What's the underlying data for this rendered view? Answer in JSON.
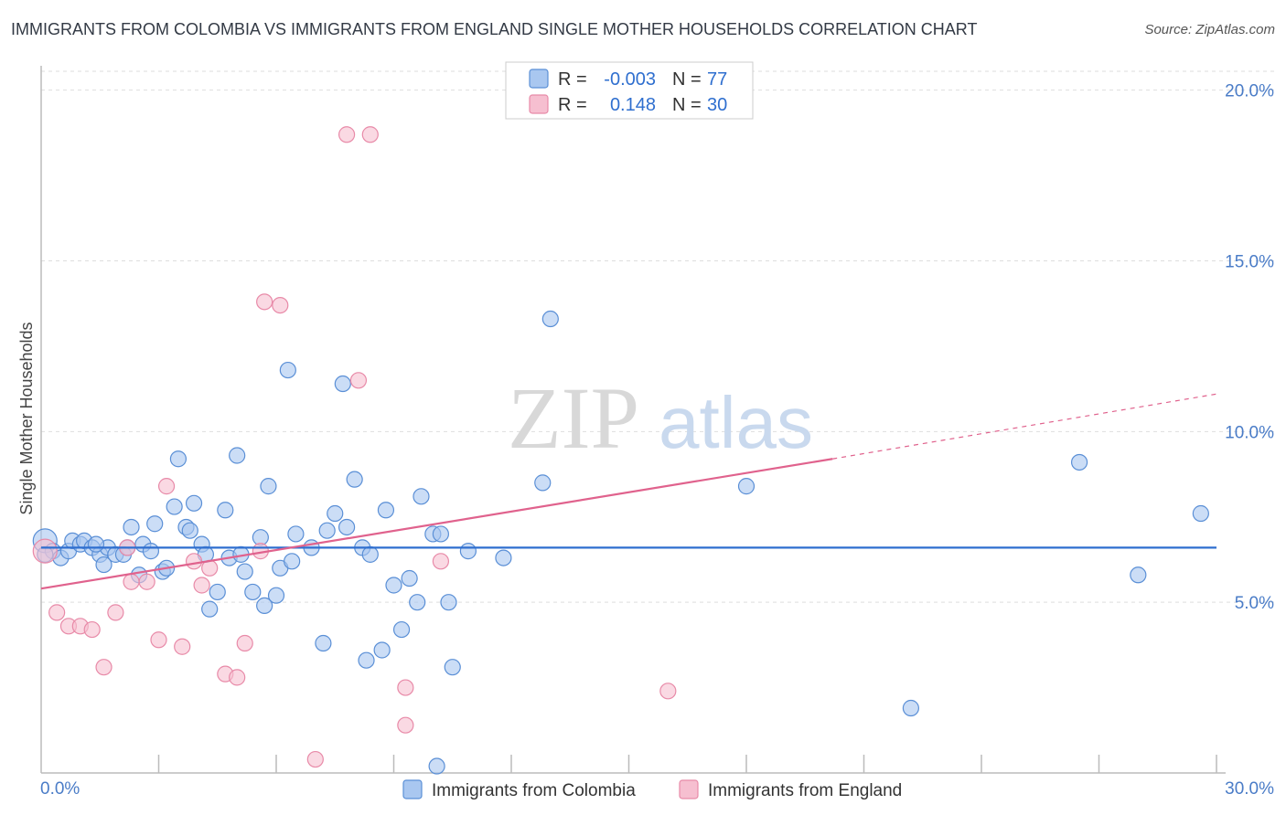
{
  "header": {
    "title": "IMMIGRANTS FROM COLOMBIA VS IMMIGRANTS FROM ENGLAND SINGLE MOTHER HOUSEHOLDS CORRELATION CHART",
    "source": "Source: ZipAtlas.com"
  },
  "watermark": {
    "zip": "ZIP",
    "atlas": "atlas"
  },
  "colors": {
    "colombia_fill": "#a9c7f0",
    "colombia_stroke": "#5a8fd6",
    "colombia_line": "#2f6fcf",
    "england_fill": "#f6bfd0",
    "england_stroke": "#e88aa8",
    "england_line": "#e0628d"
  },
  "legend": {
    "rows": [
      {
        "r_label": "R =",
        "r_value": "-0.003",
        "n_label": "N =",
        "n_value": "77"
      },
      {
        "r_label": "R =",
        "r_value": "0.148",
        "n_label": "N =",
        "n_value": "30"
      }
    ]
  },
  "bottom_legend": {
    "series1": "Immigrants from Colombia",
    "series2": "Immigrants from England"
  },
  "chart_data": {
    "type": "scatter",
    "title": "IMMIGRANTS FROM COLOMBIA VS IMMIGRANTS FROM ENGLAND SINGLE MOTHER HOUSEHOLDS CORRELATION CHART",
    "xlabel": "",
    "ylabel": "Single Mother Households",
    "xlim": [
      0,
      30
    ],
    "ylim": [
      0,
      20.5
    ],
    "x_tick_labels": [
      "0.0%",
      "30.0%"
    ],
    "y_ticks": [
      5,
      10,
      15,
      20
    ],
    "y_tick_labels": [
      "5.0%",
      "10.0%",
      "15.0%",
      "20.0%"
    ],
    "series": [
      {
        "name": "Immigrants from Colombia",
        "trend": {
          "x": [
            0,
            30
          ],
          "y": [
            6.6,
            6.6
          ]
        },
        "points": [
          [
            0.1,
            6.8
          ],
          [
            0.3,
            6.5
          ],
          [
            0.5,
            6.3
          ],
          [
            0.7,
            6.5
          ],
          [
            0.8,
            6.8
          ],
          [
            1.0,
            6.7
          ],
          [
            1.1,
            6.8
          ],
          [
            1.3,
            6.6
          ],
          [
            1.5,
            6.4
          ],
          [
            1.6,
            6.1
          ],
          [
            1.7,
            6.6
          ],
          [
            1.9,
            6.4
          ],
          [
            2.1,
            6.4
          ],
          [
            2.2,
            6.6
          ],
          [
            2.3,
            7.2
          ],
          [
            2.5,
            5.8
          ],
          [
            2.6,
            6.7
          ],
          [
            2.8,
            6.5
          ],
          [
            2.9,
            7.3
          ],
          [
            3.1,
            5.9
          ],
          [
            3.2,
            6.0
          ],
          [
            3.4,
            7.8
          ],
          [
            3.5,
            9.2
          ],
          [
            3.7,
            7.2
          ],
          [
            3.8,
            7.1
          ],
          [
            3.9,
            7.9
          ],
          [
            4.1,
            6.7
          ],
          [
            4.2,
            6.4
          ],
          [
            4.3,
            4.8
          ],
          [
            4.5,
            5.3
          ],
          [
            4.7,
            7.7
          ],
          [
            4.8,
            6.3
          ],
          [
            5.0,
            9.3
          ],
          [
            5.1,
            6.4
          ],
          [
            5.2,
            5.9
          ],
          [
            5.4,
            5.3
          ],
          [
            5.6,
            6.9
          ],
          [
            5.7,
            4.9
          ],
          [
            5.8,
            8.4
          ],
          [
            6.0,
            5.2
          ],
          [
            6.1,
            6.0
          ],
          [
            6.3,
            11.8
          ],
          [
            6.4,
            6.2
          ],
          [
            6.5,
            7.0
          ],
          [
            6.9,
            6.6
          ],
          [
            7.2,
            3.8
          ],
          [
            7.3,
            7.1
          ],
          [
            7.5,
            7.6
          ],
          [
            7.7,
            11.4
          ],
          [
            7.8,
            7.2
          ],
          [
            8.0,
            8.6
          ],
          [
            8.2,
            6.6
          ],
          [
            8.3,
            3.3
          ],
          [
            8.4,
            6.4
          ],
          [
            8.7,
            3.6
          ],
          [
            8.8,
            7.7
          ],
          [
            9.0,
            5.5
          ],
          [
            9.2,
            4.2
          ],
          [
            9.4,
            5.7
          ],
          [
            9.6,
            5.0
          ],
          [
            9.7,
            8.1
          ],
          [
            10.0,
            7.0
          ],
          [
            10.2,
            7.0
          ],
          [
            10.4,
            5.0
          ],
          [
            10.5,
            3.1
          ],
          [
            10.9,
            6.5
          ],
          [
            11.8,
            6.3
          ],
          [
            12.8,
            8.5
          ],
          [
            13.0,
            13.3
          ],
          [
            18.0,
            8.4
          ],
          [
            22.2,
            1.9
          ],
          [
            26.5,
            9.1
          ],
          [
            28.0,
            5.8
          ],
          [
            29.6,
            7.6
          ],
          [
            10.1,
            0.2
          ],
          [
            0.1,
            6.4
          ],
          [
            1.4,
            6.7
          ]
        ]
      },
      {
        "name": "Immigrants from England",
        "trend": {
          "x": [
            0,
            20.2
          ],
          "y": [
            5.4,
            9.2
          ]
        },
        "trend_dashed": {
          "x": [
            20.2,
            30
          ],
          "y": [
            9.2,
            11.1
          ]
        },
        "points": [
          [
            0.1,
            6.5
          ],
          [
            0.4,
            4.7
          ],
          [
            0.7,
            4.3
          ],
          [
            1.0,
            4.3
          ],
          [
            1.3,
            4.2
          ],
          [
            1.6,
            3.1
          ],
          [
            1.9,
            4.7
          ],
          [
            2.2,
            6.6
          ],
          [
            2.3,
            5.6
          ],
          [
            2.7,
            5.6
          ],
          [
            3.0,
            3.9
          ],
          [
            3.2,
            8.4
          ],
          [
            3.6,
            3.7
          ],
          [
            3.9,
            6.2
          ],
          [
            4.1,
            5.5
          ],
          [
            4.3,
            6.0
          ],
          [
            4.7,
            2.9
          ],
          [
            5.0,
            2.8
          ],
          [
            5.2,
            3.8
          ],
          [
            5.6,
            6.5
          ],
          [
            5.7,
            13.8
          ],
          [
            6.1,
            13.7
          ],
          [
            7.0,
            0.4
          ],
          [
            7.8,
            18.7
          ],
          [
            8.1,
            11.5
          ],
          [
            8.4,
            18.7
          ],
          [
            9.3,
            2.5
          ],
          [
            9.3,
            1.4
          ],
          [
            10.2,
            6.2
          ],
          [
            16.0,
            2.4
          ]
        ]
      }
    ]
  }
}
